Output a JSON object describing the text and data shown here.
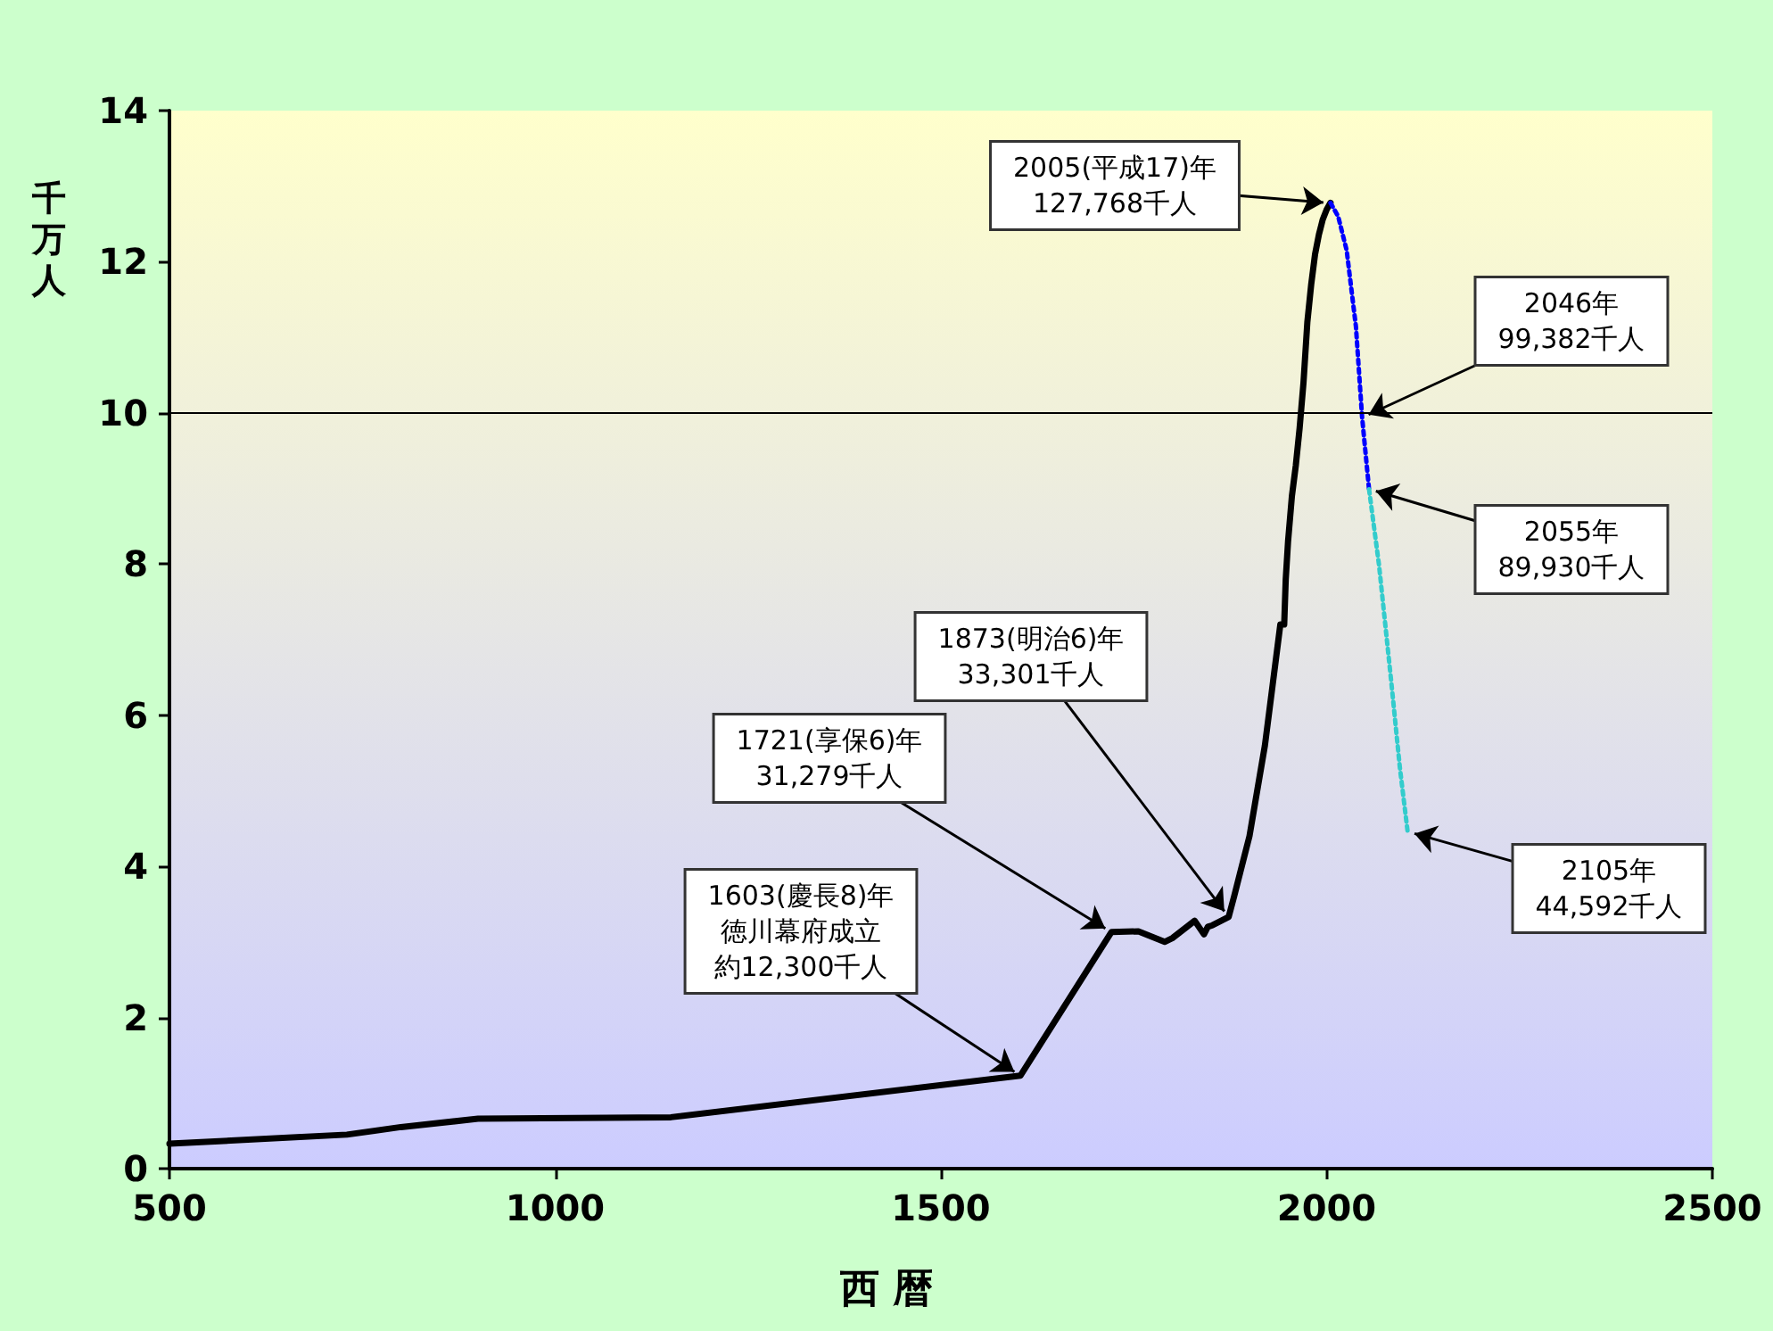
{
  "chart_data": {
    "type": "line",
    "xlabel": "西 暦",
    "ylabel": "千万人",
    "xlim": [
      500,
      2500
    ],
    "xticks": [
      500,
      1000,
      1500,
      2000,
      2500
    ],
    "ylim": [
      0,
      14
    ],
    "yticks": [
      0,
      2,
      4,
      6,
      8,
      10,
      12,
      14
    ],
    "ref_lines": [
      {
        "axis": "y",
        "value": 10,
        "color": "#000000"
      }
    ],
    "series": [
      {
        "color": "#000000",
        "line_style": "solid",
        "x": [
          500,
          730,
          800,
          900,
          1150,
          1603,
          1721,
          1756,
          1790,
          1800,
          1829,
          1841,
          1846,
          1852,
          1873,
          1880,
          1890,
          1900,
          1910,
          1920,
          1930,
          1940,
          1945,
          1947,
          1950,
          1955,
          1960,
          1965,
          1970,
          1975,
          1980,
          1985,
          1990,
          1995,
          2000,
          2005
        ],
        "values": [
          0.33,
          0.45,
          0.55,
          0.66,
          0.68,
          1.23,
          3.13,
          3.14,
          3.0,
          3.05,
          3.28,
          3.1,
          3.2,
          3.22,
          3.33,
          3.6,
          4.0,
          4.4,
          5.0,
          5.6,
          6.4,
          7.2,
          7.2,
          7.8,
          8.3,
          8.9,
          9.3,
          9.8,
          10.4,
          11.2,
          11.7,
          12.1,
          12.36,
          12.56,
          12.69,
          12.78
        ]
      },
      {
        "color": "#0000ff",
        "line_style": "dotted",
        "x": [
          2005,
          2015,
          2026,
          2038,
          2046,
          2055
        ],
        "values": [
          12.78,
          12.6,
          12.15,
          11.14,
          9.94,
          8.99
        ]
      },
      {
        "color": "#33cccc",
        "line_style": "dotted",
        "x": [
          2055,
          2068,
          2084,
          2095,
          2105
        ],
        "values": [
          8.99,
          7.98,
          6.42,
          5.3,
          4.46
        ]
      }
    ],
    "annotations": [
      {
        "text": "1603(慶長8)年徳川幕府成立約12,300千人",
        "x": 1603,
        "y": 1.23
      },
      {
        "text": "1721(享保6)年\n31,279千人",
        "x": 1721,
        "y": 3.1279
      },
      {
        "text": "1873(明治6)年\n33,301千人",
        "x": 1873,
        "y": 3.3301
      },
      {
        "text": "2005(平成17)年\n127,768千人",
        "x": 2005,
        "y": 12.7768
      },
      {
        "text": "2046年\n99,382千人",
        "x": 2046,
        "y": 9.9382
      },
      {
        "text": "2055年\n89,930千人",
        "x": 2055,
        "y": 8.993
      },
      {
        "text": "2105年\n44,592千人",
        "x": 2105,
        "y": 4.4592
      }
    ]
  }
}
